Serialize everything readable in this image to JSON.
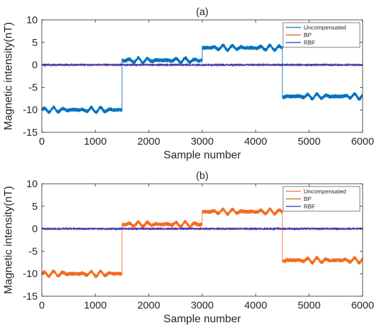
{
  "chart_data": [
    {
      "type": "line",
      "title": "(a)",
      "xlabel": "Sample number",
      "ylabel": "Magnetic intensity(nT)",
      "xlim": [
        0,
        6000
      ],
      "ylim": [
        -15,
        10
      ],
      "xticks": [
        "0",
        "1000",
        "2000",
        "3000",
        "4000",
        "5000",
        "6000"
      ],
      "yticks": [
        "-15",
        "-10",
        "-5",
        "0",
        "5",
        "10"
      ],
      "grid": false,
      "legend_position": "top-right",
      "series": [
        {
          "name": "Uncompensated",
          "color": "#0072BD",
          "segments": [
            {
              "x_start": 0,
              "x_end": 1500,
              "level": -10
            },
            {
              "x_start": 1500,
              "x_end": 3000,
              "level": 1
            },
            {
              "x_start": 3000,
              "x_end": 4500,
              "level": 3.8
            },
            {
              "x_start": 4500,
              "x_end": 6000,
              "level": -7
            }
          ]
        },
        {
          "name": "BP",
          "color": "#D95319",
          "level": 0
        },
        {
          "name": "RBF",
          "color": "#2A2ACF",
          "level": 0
        }
      ]
    },
    {
      "type": "line",
      "title": "(b)",
      "xlabel": "Sample number",
      "ylabel": "Magnetic intensity(nT)",
      "xlim": [
        0,
        6000
      ],
      "ylim": [
        -15,
        10
      ],
      "xticks": [
        "0",
        "1000",
        "2000",
        "3000",
        "4000",
        "5000",
        "6000"
      ],
      "yticks": [
        "-15",
        "-10",
        "-5",
        "0",
        "5",
        "10"
      ],
      "grid": false,
      "legend_position": "top-right",
      "series": [
        {
          "name": "Uncompensated",
          "color": "#F26B1D",
          "segments": [
            {
              "x_start": 0,
              "x_end": 1500,
              "level": -10
            },
            {
              "x_start": 1500,
              "x_end": 3000,
              "level": 1
            },
            {
              "x_start": 3000,
              "x_end": 4500,
              "level": 3.8
            },
            {
              "x_start": 4500,
              "x_end": 6000,
              "level": -7
            }
          ]
        },
        {
          "name": "BP",
          "color": "#D95319",
          "level": 0
        },
        {
          "name": "RBF",
          "color": "#2A2ACF",
          "level": 0
        }
      ]
    }
  ]
}
